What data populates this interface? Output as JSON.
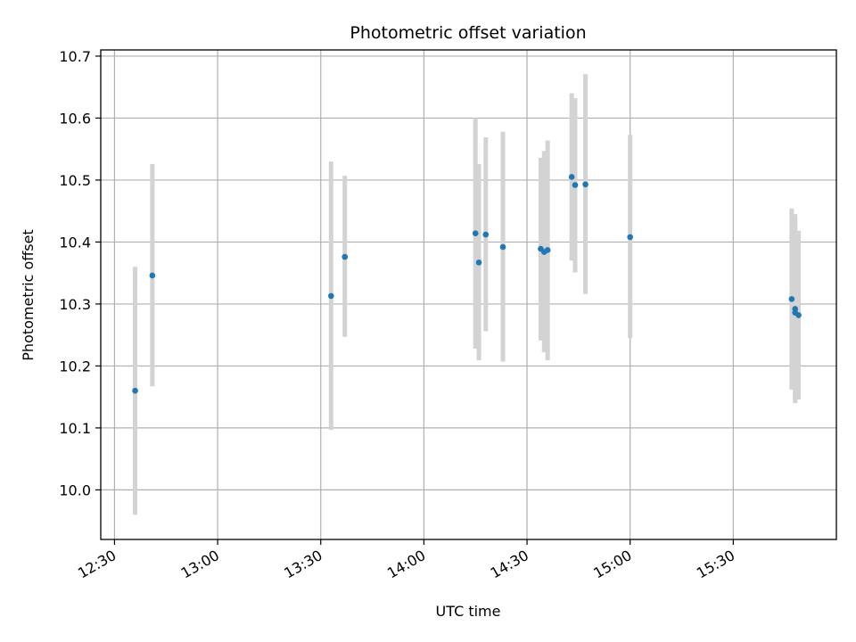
{
  "chart_data": {
    "type": "scatter",
    "title": "Photometric offset variation",
    "xlabel": "UTC time",
    "ylabel": "Photometric offset",
    "x_unit": "UTC time (HH:MM)",
    "xlim": [
      "12:26",
      "16:00"
    ],
    "ylim": [
      9.92,
      10.71
    ],
    "x_ticks": [
      "12:30",
      "13:00",
      "13:30",
      "14:00",
      "14:30",
      "15:00",
      "15:30"
    ],
    "y_ticks": [
      "10.0",
      "10.1",
      "10.2",
      "10.3",
      "10.4",
      "10.5",
      "10.6",
      "10.7"
    ],
    "y_tick_values": [
      10.0,
      10.1,
      10.2,
      10.3,
      10.4,
      10.5,
      10.6,
      10.7
    ],
    "grid": true,
    "colors": {
      "marker": "#1f77b4",
      "errorbar": "#d3d3d3",
      "grid": "#b0b0b0"
    },
    "points": [
      {
        "time": "12:36",
        "y": 10.16,
        "low": 9.96,
        "high": 10.36
      },
      {
        "time": "12:41",
        "y": 10.346,
        "low": 10.167,
        "high": 10.526
      },
      {
        "time": "13:33",
        "y": 10.313,
        "low": 10.097,
        "high": 10.53
      },
      {
        "time": "13:37",
        "y": 10.376,
        "low": 10.247,
        "high": 10.507
      },
      {
        "time": "14:15",
        "y": 10.414,
        "low": 10.228,
        "high": 10.6
      },
      {
        "time": "14:16",
        "y": 10.367,
        "low": 10.209,
        "high": 10.526
      },
      {
        "time": "14:18",
        "y": 10.412,
        "low": 10.256,
        "high": 10.569
      },
      {
        "time": "14:23",
        "y": 10.392,
        "low": 10.207,
        "high": 10.578
      },
      {
        "time": "14:34",
        "y": 10.389,
        "low": 10.241,
        "high": 10.536
      },
      {
        "time": "14:35",
        "y": 10.384,
        "low": 10.222,
        "high": 10.547
      },
      {
        "time": "14:36",
        "y": 10.387,
        "low": 10.209,
        "high": 10.564
      },
      {
        "time": "14:43",
        "y": 10.505,
        "low": 10.37,
        "high": 10.64
      },
      {
        "time": "14:44",
        "y": 10.492,
        "low": 10.351,
        "high": 10.632
      },
      {
        "time": "14:47",
        "y": 10.493,
        "low": 10.316,
        "high": 10.671
      },
      {
        "time": "15:00",
        "y": 10.408,
        "low": 10.245,
        "high": 10.573
      },
      {
        "time": "15:47",
        "y": 10.308,
        "low": 10.162,
        "high": 10.454
      },
      {
        "time": "15:48",
        "y": 10.292,
        "low": 10.14,
        "high": 10.445
      },
      {
        "time": "15:48",
        "y": 10.286,
        "low": 10.146,
        "high": 10.427
      },
      {
        "time": "15:49",
        "y": 10.282,
        "low": 10.146,
        "high": 10.418
      }
    ]
  }
}
